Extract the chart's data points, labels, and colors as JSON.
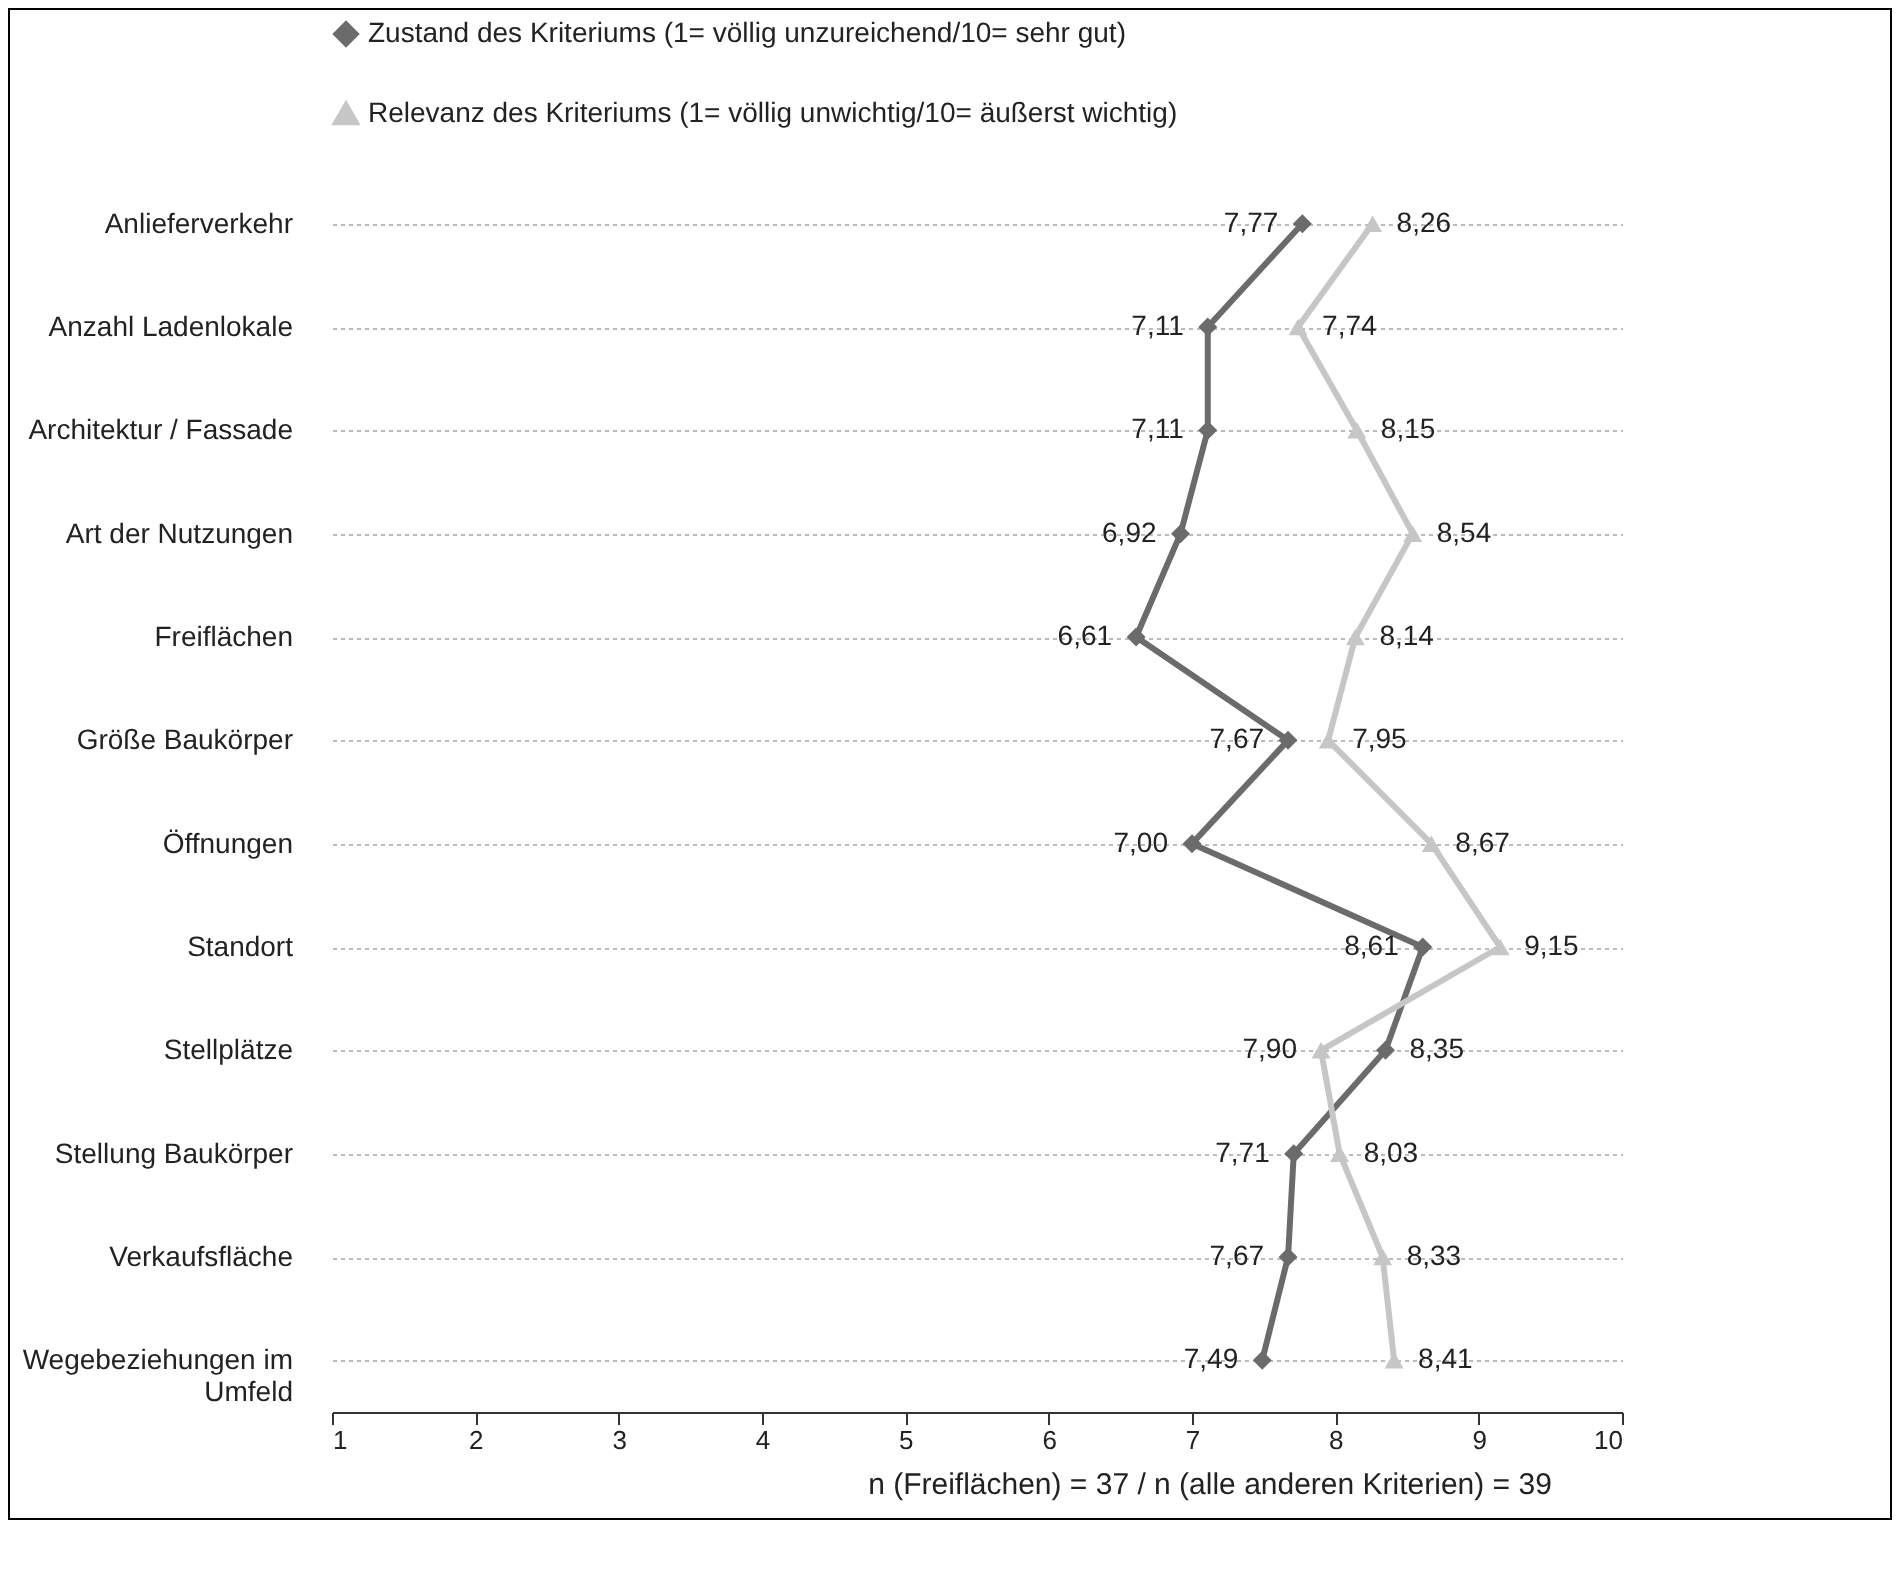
{
  "chart_data": {
    "type": "line",
    "orientation": "horizontal",
    "categories": [
      "Anlieferverkehr",
      "Anzahl Ladenlokale",
      "Architektur / Fassade",
      "Art der Nutzungen",
      "Freiflächen",
      "Größe Baukörper",
      "Öffnungen",
      "Standort",
      "Stellplätze",
      "Stellung Baukörper",
      "Verkaufsfläche",
      "Wegebeziehungen im Umfeld"
    ],
    "series": [
      {
        "name": "Zustand des Kriteriums (1= völlig unzureichend/10= sehr gut)",
        "color": "#6b6b6b",
        "marker": "diamond",
        "values": [
          7.77,
          7.11,
          7.11,
          6.92,
          6.61,
          7.67,
          7.0,
          8.61,
          8.35,
          7.71,
          7.67,
          7.49
        ],
        "value_labels": [
          "7,77",
          "7,11",
          "7,11",
          "6,92",
          "6,61",
          "7,67",
          "7,00",
          "8,61",
          "8,35",
          "7,71",
          "7,67",
          "7,49"
        ]
      },
      {
        "name": "Relevanz des Kriteriums (1= völlig unwichtig/10= äußerst wichtig)",
        "color": "#c6c6c6",
        "marker": "triangle",
        "values": [
          8.26,
          7.74,
          8.15,
          8.54,
          8.14,
          7.95,
          8.67,
          9.15,
          7.9,
          8.03,
          8.33,
          8.41
        ],
        "value_labels": [
          "8,26",
          "7,74",
          "8,15",
          "8,54",
          "8,14",
          "7,95",
          "8,67",
          "9,15",
          "7,90",
          "8,03",
          "8,33",
          "8,41"
        ]
      }
    ],
    "xlim": [
      1,
      10
    ],
    "xticks": [
      1,
      2,
      3,
      4,
      5,
      6,
      7,
      8,
      9,
      10
    ],
    "grid": "y",
    "legend": "top",
    "annotations": [
      "n (Freiflächen) = 37 / n (alle anderen Kriterien) = 39"
    ]
  }
}
